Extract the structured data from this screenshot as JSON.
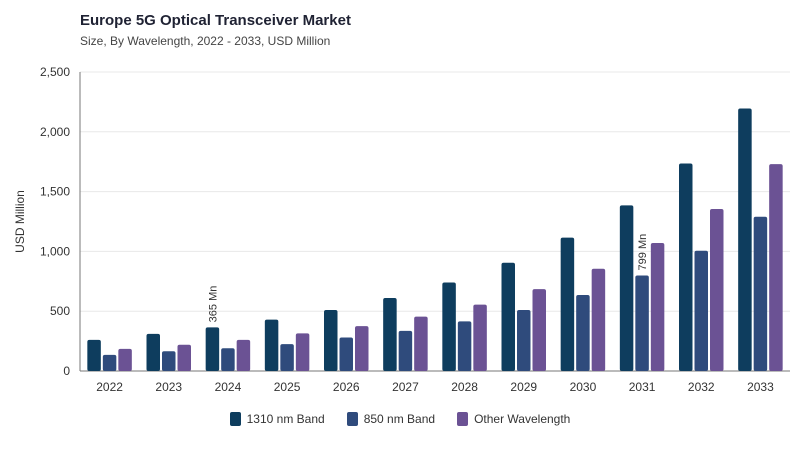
{
  "title": "Europe 5G Optical Transceiver Market",
  "subtitle": "Size, By Wavelength, 2022 - 2033, USD Million",
  "colors": {
    "series": [
      "#0e3d5e",
      "#2f4b7c",
      "#6b5294"
    ],
    "grid": "#e8e8e8",
    "axis": "#777777",
    "text": "#333333"
  },
  "chart_data": {
    "type": "bar",
    "title": "Europe 5G Optical Transceiver Market",
    "subtitle": "Size, By Wavelength, 2022 - 2033, USD Million",
    "xlabel": "",
    "ylabel": "USD Million",
    "ylim": [
      0,
      2500
    ],
    "yticks": [
      0,
      500,
      1000,
      1500,
      2000,
      2500
    ],
    "ytick_labels": [
      "0",
      "500",
      "1,000",
      "1,500",
      "2,000",
      "2,500"
    ],
    "grid": true,
    "legend_position": "bottom-center",
    "categories": [
      "2022",
      "2023",
      "2024",
      "2025",
      "2026",
      "2027",
      "2028",
      "2029",
      "2030",
      "2031",
      "2032",
      "2033"
    ],
    "series": [
      {
        "name": "1310 nm Band",
        "values": [
          260,
          310,
          365,
          430,
          510,
          610,
          740,
          905,
          1115,
          1385,
          1735,
          2195
        ]
      },
      {
        "name": "850 nm Band",
        "values": [
          135,
          165,
          190,
          225,
          280,
          335,
          415,
          510,
          635,
          799,
          1005,
          1290
        ]
      },
      {
        "name": "Other Wavelength",
        "values": [
          185,
          220,
          260,
          315,
          375,
          455,
          555,
          685,
          855,
          1070,
          1355,
          1730
        ]
      }
    ],
    "annotations": [
      {
        "text": "365 Mn",
        "category": "2024",
        "series": 0
      },
      {
        "text": "799 Mn",
        "category": "2031",
        "series": 1
      }
    ]
  }
}
